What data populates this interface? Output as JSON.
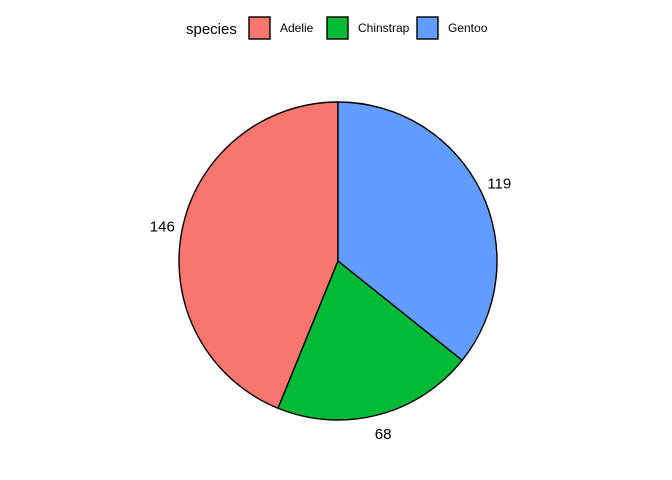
{
  "chart_data": {
    "type": "pie",
    "legend": {
      "title": "species",
      "placement": "top"
    },
    "categories": [
      "Adelie",
      "Chinstrap",
      "Gentoo"
    ],
    "values": [
      146,
      68,
      119
    ],
    "colors": [
      "#F8766D",
      "#00BA38",
      "#619CFF"
    ],
    "direction": "counterclockwise",
    "start": "12 o'clock",
    "data_labels": [
      "146",
      "68",
      "119"
    ]
  }
}
